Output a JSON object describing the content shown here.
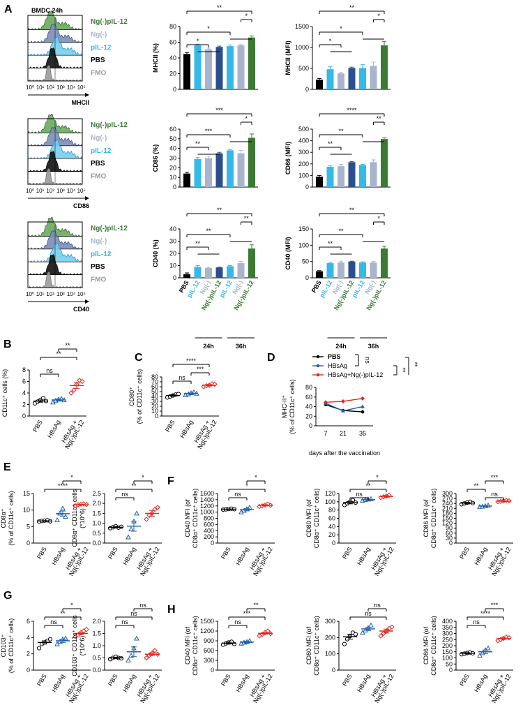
{
  "colors": {
    "black": "#000000",
    "lightblue": "#35b9e8",
    "gray": "#a9b4cd",
    "navy": "#2b4f8c",
    "green": "#3a7a35",
    "red": "#e2261f",
    "blue": "#1f5ea8",
    "gray2": "#9a9a9a"
  },
  "panel_labels": {
    "A": "A",
    "B": "B",
    "C": "C",
    "D": "D",
    "E": "E",
    "F": "F",
    "G": "G",
    "H": "H"
  },
  "panelA": {
    "histo_title": "BMDC 24h",
    "axis_ticks": [
      "10⁰",
      "10¹",
      "10²",
      "10³",
      "10⁴",
      "10⁵"
    ],
    "legend": [
      "Ng(-)pIL-12",
      "Ng(-)",
      "pIL-12",
      "PBS",
      "FMO"
    ],
    "markers": [
      "MHCII",
      "CD86",
      "CD40"
    ],
    "time_24": "24h",
    "time_36": "36h",
    "xcats": [
      "PBS",
      "pIL-12",
      "Ng(-)",
      "Ng(-)pIL-12",
      "pIL-12",
      "Ng(-)",
      "Ng(-)pIL-12"
    ],
    "sig": {
      "mhc_pct": [
        "**",
        "*",
        "*",
        "*"
      ],
      "mhc_mfi": [
        "**",
        "*",
        "*",
        "*"
      ],
      "cd86_pct": [
        "***",
        "*",
        "***",
        "**"
      ],
      "cd86_mfi": [
        "****",
        "**",
        "**",
        "**"
      ],
      "cd40_pct": [
        "**",
        "**",
        "**",
        "**"
      ],
      "cd40_mfi": [
        "**",
        "*",
        "**",
        "**"
      ]
    }
  },
  "groups3": [
    "PBS",
    "HBsAg",
    "HBsAg +",
    "Ng(-)pIL-12"
  ],
  "panelB": {
    "ylabel": "CD11c⁺ cells (%)",
    "sig": [
      "**",
      "**",
      "ns"
    ]
  },
  "panelC": {
    "ylabel1": "CD80⁺",
    "ylabel2": "(% of CD11c⁺ cells)",
    "sig": [
      "****",
      "***",
      "ns"
    ]
  },
  "panelD": {
    "ylabel1": "MHC-II⁺",
    "ylabel2": "(% of CD11c⁺ cells)",
    "xlabel": "days after the  vaccination",
    "legend": [
      "PBS",
      "HBsAg",
      "HBsAg+Ng(-)pIL-12"
    ],
    "sig": [
      "ns",
      "**",
      "**"
    ]
  },
  "panelE": {
    "p1": {
      "ylabel1": "CD8α⁺",
      "ylabel2": "(% of CD11c⁺ cells)",
      "sig": [
        "*",
        "****"
      ]
    },
    "p2": {
      "ylabel1": "CD8α⁺ CD11c⁺ cells",
      "ylabel2": "(*10^6)",
      "sig": [
        "*",
        "**",
        "ns"
      ]
    }
  },
  "panelF": {
    "p1": {
      "ylabel1": "CD40 MFI (of",
      "ylabel2": "CD8α⁺ CD11c⁺ cells)",
      "sig": [
        "*",
        "*",
        "ns"
      ]
    },
    "p2": {
      "ylabel1": "CD80 MFI (of",
      "ylabel2": "CD8α⁺ CD11c⁺ cells)",
      "sig": [
        "*",
        "**",
        "ns"
      ]
    },
    "p3": {
      "ylabel1": "CD86 MFI (of",
      "ylabel2": "CD8α⁺ CD11c⁺ cells)",
      "sig": [
        "***",
        "ns",
        "**"
      ]
    }
  },
  "panelG": {
    "p1": {
      "ylabel1": "CD103⁺",
      "ylabel2": "(% of CD11c⁺ cells)",
      "sig": [
        "*",
        "**",
        "ns"
      ]
    },
    "p2": {
      "ylabel1": "CD103⁺ CD11c⁺ cells",
      "ylabel2": "(*10^6)",
      "sig": [
        "ns",
        "ns",
        "ns"
      ]
    }
  },
  "panelH": {
    "p1": {
      "ylabel1": "CD40 MFI (of",
      "ylabel2": "CD8α⁺ CD11c⁺ cells)",
      "sig": [
        "**",
        "***",
        "ns"
      ]
    },
    "p2": {
      "ylabel1": "CD80 MFI (of",
      "ylabel2": "CD8α⁺ CD11c⁺ cells)",
      "sig": [
        "ns",
        "ns"
      ]
    },
    "p3": {
      "ylabel1": "CD86 MFI (of",
      "ylabel2": "CD8α⁺ CD11c⁺ cells)",
      "sig": [
        "***",
        "****",
        "ns"
      ]
    }
  },
  "chart_data": [
    {
      "type": "bar",
      "id": "mhc_pct",
      "ylabel": "MHCII (%)",
      "ylim": [
        0,
        80
      ],
      "ticks": [
        0,
        20,
        40,
        60,
        80
      ],
      "categories": [
        "PBS",
        "pIL-12 24h",
        "Ng(-) 24h",
        "Ng(-)pIL-12 24h",
        "pIL-12 36h",
        "Ng(-) 36h",
        "Ng(-)pIL-12 36h"
      ],
      "values": [
        45,
        56,
        51,
        54,
        55,
        56,
        66
      ],
      "errors": [
        2,
        1.5,
        1.5,
        1,
        1.5,
        1,
        2
      ]
    },
    {
      "type": "bar",
      "id": "mhc_mfi",
      "ylabel": "MHCII (MFI)",
      "ylim": [
        0,
        1500
      ],
      "ticks": [
        0,
        500,
        1000,
        1500
      ],
      "categories": [
        "PBS",
        "pIL-12 24h",
        "Ng(-) 24h",
        "Ng(-)pIL-12 24h",
        "pIL-12 36h",
        "Ng(-) 36h",
        "Ng(-)pIL-12 36h"
      ],
      "values": [
        230,
        480,
        380,
        510,
        510,
        560,
        1050
      ],
      "errors": [
        30,
        60,
        20,
        20,
        80,
        90,
        90
      ]
    },
    {
      "type": "bar",
      "id": "cd86_pct",
      "ylabel": "CD86 (%)",
      "ylim": [
        0,
        60
      ],
      "ticks": [
        0,
        10,
        20,
        30,
        40,
        50,
        60
      ],
      "categories": [
        "PBS",
        "pIL-12 24h",
        "Ng(-) 24h",
        "Ng(-)pIL-12 24h",
        "pIL-12 36h",
        "Ng(-) 36h",
        "Ng(-)pIL-12 36h"
      ],
      "values": [
        14,
        29,
        30,
        35,
        38,
        35,
        51
      ],
      "errors": [
        1.5,
        1.5,
        2,
        1,
        1,
        3,
        4
      ]
    },
    {
      "type": "bar",
      "id": "cd86_mfi",
      "ylabel": "CD86 (MFI)",
      "ylim": [
        0,
        500
      ],
      "ticks": [
        0,
        100,
        200,
        300,
        400,
        500
      ],
      "categories": [
        "PBS",
        "pIL-12 24h",
        "Ng(-) 24h",
        "Ng(-)pIL-12 24h",
        "pIL-12 36h",
        "Ng(-) 36h",
        "Ng(-)pIL-12 36h"
      ],
      "values": [
        90,
        175,
        180,
        215,
        190,
        215,
        415
      ],
      "errors": [
        10,
        10,
        15,
        5,
        5,
        20,
        10
      ]
    },
    {
      "type": "bar",
      "id": "cd40_pct",
      "ylabel": "CD40 (%)",
      "ylim": [
        0,
        40
      ],
      "ticks": [
        0,
        10,
        20,
        30,
        40
      ],
      "categories": [
        "PBS",
        "pIL-12 24h",
        "Ng(-) 24h",
        "Ng(-)pIL-12 24h",
        "pIL-12 36h",
        "Ng(-) 36h",
        "Ng(-)pIL-12 36h"
      ],
      "values": [
        3,
        9,
        8,
        8.5,
        9.5,
        12,
        24
      ],
      "errors": [
        1,
        1,
        0.5,
        0.3,
        0.5,
        1.5,
        3
      ]
    },
    {
      "type": "bar",
      "id": "cd40_mfi",
      "ylabel": "CD40 (MFI)",
      "ylim": [
        0,
        150
      ],
      "ticks": [
        0,
        50,
        100,
        150
      ],
      "categories": [
        "PBS",
        "pIL-12 24h",
        "Ng(-) 24h",
        "Ng(-)pIL-12 24h",
        "pIL-12 36h",
        "Ng(-) 36h",
        "Ng(-)pIL-12 36h"
      ],
      "values": [
        20,
        45,
        47,
        50,
        47,
        47,
        90
      ],
      "errors": [
        2,
        3,
        4,
        1,
        2,
        3,
        7
      ]
    },
    {
      "type": "scatter",
      "id": "B",
      "ylim": [
        0,
        8
      ],
      "ticks": [
        0,
        2,
        4,
        6,
        8
      ],
      "groups": [
        {
          "name": "PBS",
          "points": [
            2.2,
            2.5,
            2.8,
            3.1,
            2.6
          ],
          "mean": 2.6,
          "sem": 0.2
        },
        {
          "name": "HBsAg",
          "points": [
            2.4,
            2.7,
            2.9,
            3.0,
            2.8
          ],
          "mean": 2.8,
          "sem": 0.15
        },
        {
          "name": "HBsAg + Ng(-)pIL-12",
          "points": [
            4.0,
            4.5,
            5.5,
            6.2,
            6.0
          ],
          "mean": 5.3,
          "sem": 0.5
        }
      ]
    },
    {
      "type": "scatter",
      "id": "C",
      "ylim": [
        0,
        80
      ],
      "ticks": [
        0,
        10,
        20,
        30,
        40,
        50,
        60,
        70,
        80
      ],
      "groups": [
        {
          "name": "PBS",
          "points": [
            38,
            40,
            42,
            44,
            45
          ],
          "mean": 42,
          "sem": 1.5
        },
        {
          "name": "HBsAg",
          "points": [
            43,
            45,
            47,
            49,
            46
          ],
          "mean": 46,
          "sem": 1.2
        },
        {
          "name": "HBsAg + Ng(-)pIL-12",
          "points": [
            60,
            62,
            63,
            66,
            65
          ],
          "mean": 63,
          "sem": 1.5
        }
      ]
    },
    {
      "type": "line",
      "id": "D",
      "x": [
        7,
        21,
        35
      ],
      "ylim": [
        0,
        80
      ],
      "ticks": [
        0,
        20,
        40,
        60,
        80
      ],
      "series": [
        {
          "name": "PBS",
          "values": [
            44,
            32,
            29
          ],
          "errors": [
            3,
            2,
            2
          ]
        },
        {
          "name": "HBsAg",
          "values": [
            47,
            31,
            40
          ],
          "errors": [
            4,
            2,
            4
          ]
        },
        {
          "name": "HBsAg+Ng(-)pIL-12",
          "values": [
            49,
            51,
            57
          ],
          "errors": [
            4,
            2,
            2
          ]
        }
      ]
    },
    {
      "type": "scatter",
      "id": "E1",
      "ylim": [
        0,
        15
      ],
      "ticks": [
        0,
        5,
        10,
        15
      ],
      "groups": [
        {
          "name": "PBS",
          "points": [
            6.5,
            6.7,
            6.8,
            6.9,
            6.6
          ],
          "mean": 6.7,
          "sem": 0.1
        },
        {
          "name": "HBsAg",
          "points": [
            7,
            9,
            10.5,
            8
          ],
          "mean": 8.9,
          "sem": 0.8
        },
        {
          "name": "HBsAg + Ng(-)pIL-12",
          "points": [
            11.3,
            11.6,
            11.8,
            11.9,
            11.7
          ],
          "mean": 11.6,
          "sem": 0.1
        }
      ]
    },
    {
      "type": "scatter",
      "id": "E2",
      "ylim": [
        0,
        2.5
      ],
      "ticks": [
        0,
        0.5,
        1.0,
        1.5,
        2.0,
        2.5
      ],
      "groups": [
        {
          "name": "PBS",
          "points": [
            0.75,
            0.8,
            0.85,
            0.78,
            0.82
          ],
          "mean": 0.8,
          "sem": 0.03
        },
        {
          "name": "HBsAg",
          "points": [
            0.3,
            0.7,
            1.1,
            1.5
          ],
          "mean": 0.85,
          "sem": 0.25
        },
        {
          "name": "HBsAg + Ng(-)pIL-12",
          "points": [
            1.2,
            1.4,
            1.5,
            1.7,
            1.8
          ],
          "mean": 1.5,
          "sem": 0.15
        }
      ]
    },
    {
      "type": "scatter",
      "id": "F1",
      "ylim": [
        0,
        1600
      ],
      "ticks": [
        0,
        200,
        400,
        600,
        800,
        1000,
        1200,
        1400,
        1600
      ],
      "groups": [
        {
          "name": "PBS",
          "points": [
            1080,
            1090,
            1100,
            1110,
            1095
          ],
          "mean": 1095,
          "sem": 10
        },
        {
          "name": "HBsAg",
          "points": [
            1000,
            1050,
            1100,
            1150
          ],
          "mean": 1080,
          "sem": 40
        },
        {
          "name": "HBsAg + Ng(-)pIL-12",
          "points": [
            1180,
            1200,
            1230,
            1260,
            1220
          ],
          "mean": 1220,
          "sem": 20
        }
      ]
    },
    {
      "type": "scatter",
      "id": "F2",
      "ylim": [
        0,
        120
      ],
      "ticks": [
        0,
        20,
        40,
        60,
        80,
        100,
        120
      ],
      "groups": [
        {
          "name": "PBS",
          "points": [
            92,
            96,
            100,
            104,
            98
          ],
          "mean": 98,
          "sem": 3
        },
        {
          "name": "HBsAg",
          "points": [
            103,
            105,
            106,
            107
          ],
          "mean": 105,
          "sem": 1
        },
        {
          "name": "HBsAg + Ng(-)pIL-12",
          "points": [
            110,
            112,
            114,
            116
          ],
          "mean": 113,
          "sem": 2
        }
      ]
    },
    {
      "type": "scatter",
      "id": "F3",
      "ylim": [
        0,
        300
      ],
      "ticks": [
        0,
        30,
        60,
        90,
        120,
        150,
        180,
        210,
        240,
        270,
        300
      ],
      "groups": [
        {
          "name": "PBS",
          "points": [
            235,
            240,
            245,
            250,
            242
          ],
          "mean": 242,
          "sem": 5
        },
        {
          "name": "HBsAg",
          "points": [
            220,
            222,
            225,
            228
          ],
          "mean": 224,
          "sem": 2
        },
        {
          "name": "HBsAg + Ng(-)pIL-12",
          "points": [
            250,
            252,
            255,
            258,
            256
          ],
          "mean": 254,
          "sem": 2
        }
      ]
    },
    {
      "type": "scatter",
      "id": "G1",
      "ylim": [
        0,
        6
      ],
      "ticks": [
        0,
        2,
        4,
        6
      ],
      "groups": [
        {
          "name": "PBS",
          "points": [
            2.7,
            3.2,
            3.4,
            3.6,
            3.8
          ],
          "mean": 3.4,
          "sem": 0.2
        },
        {
          "name": "HBsAg",
          "points": [
            3.2,
            3.5,
            3.8,
            3.9
          ],
          "mean": 3.6,
          "sem": 0.2
        },
        {
          "name": "HBsAg + Ng(-)pIL-12",
          "points": [
            4.1,
            4.3,
            4.6,
            4.8,
            5.0
          ],
          "mean": 4.5,
          "sem": 0.15
        }
      ]
    },
    {
      "type": "scatter",
      "id": "G2",
      "ylim": [
        0,
        2.0
      ],
      "ticks": [
        0,
        0.5,
        1.0,
        1.5,
        2.0
      ],
      "groups": [
        {
          "name": "PBS",
          "points": [
            0.45,
            0.5,
            0.55,
            0.5,
            0.48
          ],
          "mean": 0.5,
          "sem": 0.03
        },
        {
          "name": "HBsAg",
          "points": [
            0.4,
            0.6,
            0.9,
            1.3
          ],
          "mean": 0.75,
          "sem": 0.2
        },
        {
          "name": "HBsAg + Ng(-)pIL-12",
          "points": [
            0.5,
            0.6,
            0.7,
            0.8,
            0.65
          ],
          "mean": 0.65,
          "sem": 0.06
        }
      ]
    },
    {
      "type": "scatter",
      "id": "H1",
      "ylim": [
        0,
        1500
      ],
      "ticks": [
        0,
        300,
        600,
        900,
        1200,
        1500
      ],
      "groups": [
        {
          "name": "PBS",
          "points": [
            780,
            820,
            850,
            870,
            800
          ],
          "mean": 830,
          "sem": 30
        },
        {
          "name": "HBsAg",
          "points": [
            820,
            850,
            870,
            900
          ],
          "mean": 860,
          "sem": 25
        },
        {
          "name": "HBsAg + Ng(-)pIL-12",
          "points": [
            1050,
            1100,
            1150,
            1200,
            1120
          ],
          "mean": 1130,
          "sem": 30
        }
      ]
    },
    {
      "type": "scatter",
      "id": "H2",
      "ylim": [
        0,
        300
      ],
      "ticks": [
        0,
        100,
        200,
        300
      ],
      "groups": [
        {
          "name": "PBS",
          "points": [
            160,
            190,
            210,
            230,
            220
          ],
          "mean": 205,
          "sem": 15
        },
        {
          "name": "HBsAg",
          "points": [
            230,
            245,
            260,
            275
          ],
          "mean": 253,
          "sem": 10
        },
        {
          "name": "HBsAg + Ng(-)pIL-12",
          "points": [
            210,
            225,
            240,
            255,
            265
          ],
          "mean": 240,
          "sem": 12
        }
      ]
    },
    {
      "type": "scatter",
      "id": "H3",
      "ylim": [
        0,
        400
      ],
      "ticks": [
        0,
        50,
        100,
        150,
        200,
        250,
        300,
        350,
        400
      ],
      "groups": [
        {
          "name": "PBS",
          "points": [
            130,
            135,
            140,
            145,
            138
          ],
          "mean": 138,
          "sem": 5
        },
        {
          "name": "HBsAg",
          "points": [
            120,
            140,
            165,
            180
          ],
          "mean": 150,
          "sem": 15
        },
        {
          "name": "HBsAg + Ng(-)pIL-12",
          "points": [
            240,
            250,
            260,
            270,
            265
          ],
          "mean": 258,
          "sem": 6
        }
      ]
    }
  ]
}
